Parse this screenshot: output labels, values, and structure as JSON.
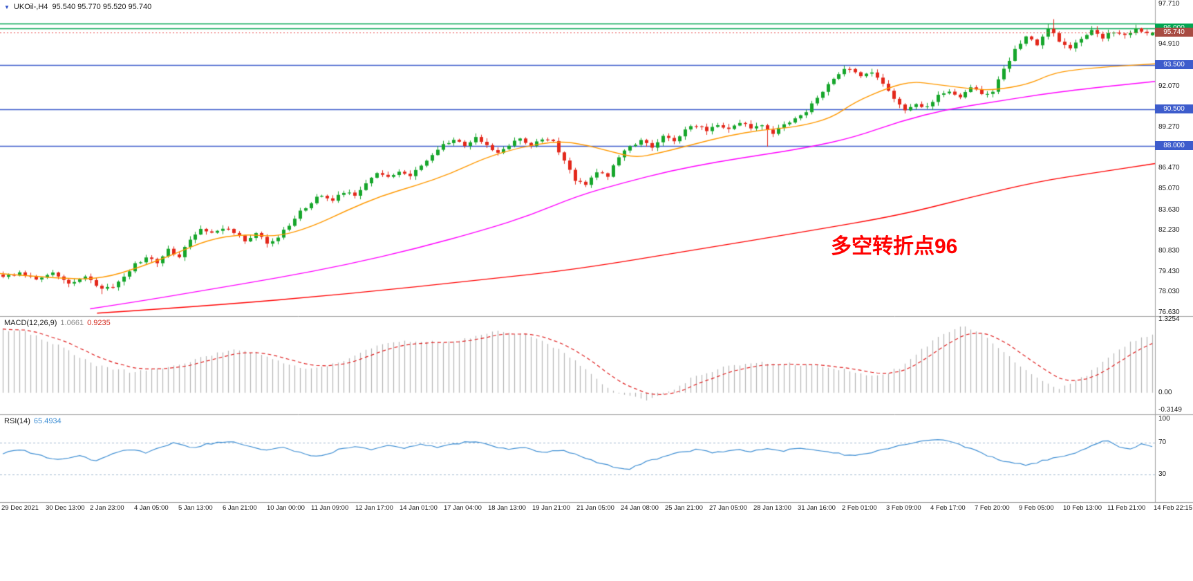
{
  "header": {
    "symbol_marker": "▼",
    "symbol": "UKOil-,H4",
    "ohlc": "95.540 95.770 95.520 95.740"
  },
  "annotation": {
    "text": "多空转折点96",
    "color": "#ff0000"
  },
  "colors": {
    "up": "#16A62B",
    "down": "#E3281B",
    "ma_fast": "#FF9900",
    "ma_mid": "#FF00FF",
    "ma_slow": "#FF0000",
    "bid_line": "#E84040",
    "macd_hist": "#B4B4B4",
    "macd_signal": "#E02020",
    "rsi_line": "#3F8FD4",
    "rsi_levels": "#A0B8D0",
    "axis_text": "#1A1A1A",
    "separator": "#9E9E9E"
  },
  "chart_data": {
    "type": "candlestick",
    "symbol": "UKOil-",
    "timeframe": "H4",
    "last_quote": {
      "open": 95.54,
      "high": 95.77,
      "low": 95.52,
      "close": 95.74
    },
    "price_axis": {
      "view_max": 97.95,
      "view_min": 76.45,
      "labels": [
        "97.710",
        "94.910",
        "92.070",
        "89.270",
        "86.470",
        "85.070",
        "83.630",
        "82.230",
        "80.830",
        "79.430",
        "78.030",
        "76.630"
      ]
    },
    "current_price": {
      "value": 95.74,
      "label": "95.740",
      "badge_color": "#A84B42"
    },
    "levels": [
      {
        "price": 96.36,
        "color": "#00A651",
        "width": 1.5,
        "badge": null
      },
      {
        "price": 96.0,
        "color": "#00A651",
        "width": 1.5,
        "badge": "96.000"
      },
      {
        "price": 93.5,
        "color": "#3D5CCC",
        "width": 1.5,
        "badge": "93.500"
      },
      {
        "price": 90.5,
        "color": "#3D5CCC",
        "width": 1.5,
        "badge": "90.500"
      },
      {
        "price": 88.0,
        "color": "#3D5CCC",
        "width": 1.5,
        "badge": "88.000"
      }
    ],
    "candles": {
      "count": 210,
      "trend": [
        [
          0,
          79.0
        ],
        [
          3,
          79.4
        ],
        [
          6,
          78.9
        ],
        [
          9,
          79.3
        ],
        [
          12,
          78.6
        ],
        [
          15,
          79.1
        ],
        [
          18,
          78.2
        ],
        [
          20,
          78.4
        ],
        [
          22,
          79.2
        ],
        [
          24,
          79.9
        ],
        [
          26,
          80.4
        ],
        [
          28,
          80.1
        ],
        [
          30,
          80.9
        ],
        [
          32,
          80.5
        ],
        [
          34,
          81.6
        ],
        [
          36,
          82.3
        ],
        [
          38,
          82.0
        ],
        [
          40,
          82.4
        ],
        [
          42,
          82.1
        ],
        [
          44,
          81.6
        ],
        [
          46,
          82.0
        ],
        [
          48,
          81.4
        ],
        [
          50,
          81.8
        ],
        [
          52,
          82.6
        ],
        [
          54,
          83.5
        ],
        [
          56,
          84.2
        ],
        [
          58,
          84.7
        ],
        [
          60,
          84.3
        ],
        [
          62,
          84.9
        ],
        [
          64,
          84.6
        ],
        [
          66,
          85.4
        ],
        [
          68,
          86.2
        ],
        [
          70,
          85.8
        ],
        [
          72,
          86.3
        ],
        [
          74,
          86.0
        ],
        [
          76,
          86.6
        ],
        [
          78,
          87.4
        ],
        [
          80,
          88.1
        ],
        [
          82,
          88.4
        ],
        [
          84,
          88.0
        ],
        [
          86,
          88.6
        ],
        [
          88,
          88.1
        ],
        [
          90,
          87.5
        ],
        [
          92,
          88.0
        ],
        [
          94,
          88.5
        ],
        [
          96,
          88.1
        ],
        [
          98,
          88.4
        ],
        [
          100,
          88.3
        ],
        [
          102,
          87.0
        ],
        [
          104,
          85.7
        ],
        [
          106,
          85.3
        ],
        [
          108,
          86.2
        ],
        [
          110,
          86.0
        ],
        [
          112,
          87.2
        ],
        [
          114,
          88.0
        ],
        [
          116,
          88.3
        ],
        [
          118,
          87.9
        ],
        [
          120,
          88.7
        ],
        [
          122,
          88.4
        ],
        [
          124,
          89.1
        ],
        [
          126,
          89.4
        ],
        [
          128,
          89.0
        ],
        [
          130,
          89.5
        ],
        [
          132,
          89.1
        ],
        [
          134,
          89.6
        ],
        [
          136,
          89.2
        ],
        [
          138,
          89.5
        ],
        [
          140,
          88.9
        ],
        [
          142,
          89.4
        ],
        [
          144,
          89.9
        ],
        [
          146,
          90.4
        ],
        [
          148,
          91.3
        ],
        [
          150,
          92.2
        ],
        [
          152,
          93.0
        ],
        [
          154,
          93.3
        ],
        [
          156,
          92.7
        ],
        [
          158,
          93.1
        ],
        [
          160,
          92.3
        ],
        [
          162,
          91.2
        ],
        [
          164,
          90.4
        ],
        [
          166,
          90.9
        ],
        [
          168,
          90.6
        ],
        [
          170,
          91.4
        ],
        [
          172,
          91.8
        ],
        [
          174,
          91.3
        ],
        [
          176,
          92.0
        ],
        [
          178,
          91.5
        ],
        [
          180,
          91.8
        ],
        [
          182,
          93.2
        ],
        [
          184,
          94.6
        ],
        [
          186,
          95.4
        ],
        [
          188,
          94.9
        ],
        [
          190,
          96.0
        ],
        [
          192,
          95.2
        ],
        [
          194,
          94.7
        ],
        [
          196,
          95.3
        ],
        [
          198,
          95.8
        ],
        [
          200,
          95.4
        ],
        [
          202,
          95.8
        ],
        [
          204,
          95.5
        ],
        [
          206,
          96.0
        ],
        [
          208,
          95.6
        ],
        [
          209,
          95.74
        ]
      ],
      "wick_highs": [
        [
          190,
          96.3
        ],
        [
          191,
          96.64
        ]
      ],
      "wick_lows": [
        [
          18,
          77.9
        ],
        [
          139,
          87.95
        ]
      ]
    },
    "moving_averages": [
      {
        "name": "fast",
        "color": "#FF9900",
        "points": [
          [
            0,
            79.3
          ],
          [
            0.06,
            78.9
          ],
          [
            0.09,
            79.0
          ],
          [
            0.12,
            79.7
          ],
          [
            0.15,
            80.6
          ],
          [
            0.18,
            81.6
          ],
          [
            0.21,
            82.0
          ],
          [
            0.24,
            81.8
          ],
          [
            0.27,
            82.5
          ],
          [
            0.3,
            83.6
          ],
          [
            0.33,
            84.6
          ],
          [
            0.36,
            85.3
          ],
          [
            0.39,
            86.1
          ],
          [
            0.42,
            87.2
          ],
          [
            0.45,
            87.9
          ],
          [
            0.48,
            88.3
          ],
          [
            0.5,
            88.2
          ],
          [
            0.53,
            87.6
          ],
          [
            0.55,
            87.2
          ],
          [
            0.57,
            87.5
          ],
          [
            0.6,
            88.1
          ],
          [
            0.63,
            88.7
          ],
          [
            0.66,
            89.1
          ],
          [
            0.69,
            89.3
          ],
          [
            0.72,
            89.9
          ],
          [
            0.74,
            91.0
          ],
          [
            0.77,
            92.0
          ],
          [
            0.79,
            92.4
          ],
          [
            0.81,
            92.2
          ],
          [
            0.84,
            91.9
          ],
          [
            0.86,
            91.8
          ],
          [
            0.89,
            92.2
          ],
          [
            0.91,
            92.9
          ],
          [
            0.93,
            93.2
          ],
          [
            0.96,
            93.4
          ],
          [
            1,
            93.6
          ]
        ]
      },
      {
        "name": "mid",
        "color": "#FF00FF",
        "points": [
          [
            0.078,
            76.9
          ],
          [
            0.12,
            77.4
          ],
          [
            0.18,
            78.2
          ],
          [
            0.24,
            79.0
          ],
          [
            0.3,
            79.9
          ],
          [
            0.36,
            81.0
          ],
          [
            0.42,
            82.3
          ],
          [
            0.46,
            83.3
          ],
          [
            0.5,
            84.6
          ],
          [
            0.54,
            85.5
          ],
          [
            0.58,
            86.3
          ],
          [
            0.62,
            86.9
          ],
          [
            0.66,
            87.4
          ],
          [
            0.7,
            87.9
          ],
          [
            0.74,
            88.6
          ],
          [
            0.78,
            89.7
          ],
          [
            0.82,
            90.5
          ],
          [
            0.86,
            91.0
          ],
          [
            0.9,
            91.5
          ],
          [
            0.94,
            91.9
          ],
          [
            1,
            92.4
          ]
        ]
      },
      {
        "name": "slow",
        "color": "#FF0000",
        "points": [
          [
            0.084,
            76.6
          ],
          [
            0.18,
            77.1
          ],
          [
            0.3,
            77.9
          ],
          [
            0.42,
            78.9
          ],
          [
            0.5,
            79.6
          ],
          [
            0.6,
            80.9
          ],
          [
            0.7,
            82.2
          ],
          [
            0.78,
            83.3
          ],
          [
            0.84,
            84.5
          ],
          [
            0.9,
            85.6
          ],
          [
            0.95,
            86.2
          ],
          [
            1,
            86.8
          ]
        ]
      }
    ],
    "macd": {
      "label": "MACD(12,26,9)",
      "main_value": "1.0661",
      "signal_value": "0.9235",
      "axis": {
        "view_max": 1.38,
        "view_min": -0.38,
        "labels": [
          {
            "text": "1.3254",
            "value": 1.3254
          },
          {
            "text": "0.00",
            "value": 0
          },
          {
            "text": "-0.3149",
            "value": -0.3149
          }
        ]
      },
      "main_path": [
        [
          0,
          1.15
        ],
        [
          0.02,
          1.1
        ],
        [
          0.05,
          0.85
        ],
        [
          0.08,
          0.5
        ],
        [
          0.11,
          0.38
        ],
        [
          0.14,
          0.45
        ],
        [
          0.17,
          0.62
        ],
        [
          0.2,
          0.78
        ],
        [
          0.22,
          0.72
        ],
        [
          0.25,
          0.5
        ],
        [
          0.27,
          0.42
        ],
        [
          0.3,
          0.62
        ],
        [
          0.33,
          0.88
        ],
        [
          0.36,
          0.95
        ],
        [
          0.385,
          0.9
        ],
        [
          0.41,
          1.02
        ],
        [
          0.43,
          1.12
        ],
        [
          0.455,
          1.05
        ],
        [
          0.48,
          0.82
        ],
        [
          0.5,
          0.55
        ],
        [
          0.52,
          0.18
        ],
        [
          0.54,
          -0.05
        ],
        [
          0.56,
          -0.13
        ],
        [
          0.58,
          0.02
        ],
        [
          0.6,
          0.28
        ],
        [
          0.63,
          0.48
        ],
        [
          0.66,
          0.55
        ],
        [
          0.69,
          0.52
        ],
        [
          0.72,
          0.46
        ],
        [
          0.74,
          0.38
        ],
        [
          0.76,
          0.3
        ],
        [
          0.78,
          0.45
        ],
        [
          0.8,
          0.8
        ],
        [
          0.82,
          1.1
        ],
        [
          0.835,
          1.22
        ],
        [
          0.85,
          1.1
        ],
        [
          0.87,
          0.75
        ],
        [
          0.89,
          0.4
        ],
        [
          0.905,
          0.18
        ],
        [
          0.92,
          0.08
        ],
        [
          0.94,
          0.28
        ],
        [
          0.96,
          0.6
        ],
        [
          0.98,
          0.9
        ],
        [
          1,
          1.0661
        ]
      ]
    },
    "rsi": {
      "label": "RSI(14)",
      "value_text": "65.4934",
      "levels": [
        70,
        30
      ],
      "axis": {
        "view_max": 105,
        "view_min": -5,
        "labels": [
          {
            "text": "100",
            "value": 100
          },
          {
            "text": "70",
            "value": 70
          },
          {
            "text": "30",
            "value": 30
          }
        ]
      },
      "path": [
        [
          0,
          56
        ],
        [
          0.015,
          62
        ],
        [
          0.03,
          55
        ],
        [
          0.05,
          48
        ],
        [
          0.065,
          54
        ],
        [
          0.08,
          47
        ],
        [
          0.095,
          55
        ],
        [
          0.11,
          62
        ],
        [
          0.125,
          57
        ],
        [
          0.14,
          65
        ],
        [
          0.15,
          70
        ],
        [
          0.165,
          63
        ],
        [
          0.18,
          69
        ],
        [
          0.2,
          72
        ],
        [
          0.215,
          65
        ],
        [
          0.23,
          60
        ],
        [
          0.245,
          64
        ],
        [
          0.26,
          57
        ],
        [
          0.275,
          52
        ],
        [
          0.29,
          60
        ],
        [
          0.305,
          66
        ],
        [
          0.32,
          62
        ],
        [
          0.335,
          67
        ],
        [
          0.35,
          63
        ],
        [
          0.365,
          68
        ],
        [
          0.38,
          64
        ],
        [
          0.395,
          69
        ],
        [
          0.41,
          72
        ],
        [
          0.425,
          66
        ],
        [
          0.44,
          61
        ],
        [
          0.455,
          64
        ],
        [
          0.47,
          58
        ],
        [
          0.485,
          61
        ],
        [
          0.5,
          54
        ],
        [
          0.515,
          46
        ],
        [
          0.53,
          40
        ],
        [
          0.545,
          37
        ],
        [
          0.56,
          46
        ],
        [
          0.575,
          52
        ],
        [
          0.59,
          58
        ],
        [
          0.605,
          62
        ],
        [
          0.62,
          57
        ],
        [
          0.635,
          62
        ],
        [
          0.65,
          59
        ],
        [
          0.665,
          63
        ],
        [
          0.68,
          60
        ],
        [
          0.695,
          64
        ],
        [
          0.71,
          60
        ],
        [
          0.725,
          57
        ],
        [
          0.74,
          53
        ],
        [
          0.755,
          58
        ],
        [
          0.77,
          63
        ],
        [
          0.785,
          68
        ],
        [
          0.8,
          72
        ],
        [
          0.815,
          74
        ],
        [
          0.83,
          69
        ],
        [
          0.845,
          61
        ],
        [
          0.86,
          52
        ],
        [
          0.875,
          45
        ],
        [
          0.89,
          42
        ],
        [
          0.905,
          47
        ],
        [
          0.92,
          52
        ],
        [
          0.935,
          58
        ],
        [
          0.95,
          68
        ],
        [
          0.96,
          74
        ],
        [
          0.97,
          66
        ],
        [
          0.98,
          62
        ],
        [
          0.99,
          68
        ],
        [
          1,
          65.49
        ]
      ]
    },
    "time_axis": {
      "labels": [
        "29 Dec 2021",
        "30 Dec 13:00",
        "2 Jan 23:00",
        "4 Jan 05:00",
        "5 Jan 13:00",
        "6 Jan 21:00",
        "10 Jan 00:00",
        "11 Jan 09:00",
        "12 Jan 17:00",
        "14 Jan 01:00",
        "17 Jan 04:00",
        "18 Jan 13:00",
        "19 Jan 21:00",
        "21 Jan 05:00",
        "24 Jan 08:00",
        "25 Jan 21:00",
        "27 Jan 05:00",
        "28 Jan 13:00",
        "31 Jan 16:00",
        "2 Feb 01:00",
        "3 Feb 09:00",
        "4 Feb 17:00",
        "7 Feb 20:00",
        "9 Feb 05:00",
        "10 Feb 13:00",
        "11 Feb 21:00",
        "14 Feb 22:15"
      ]
    }
  }
}
